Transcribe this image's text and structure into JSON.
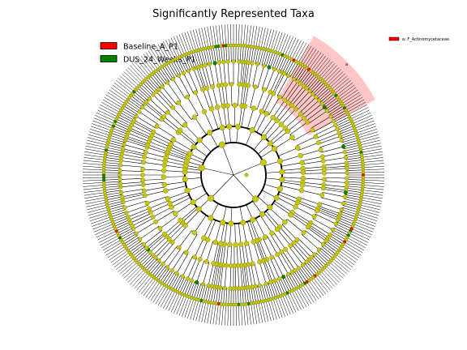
{
  "figure": {
    "title": "Significantly Represented Taxa"
  },
  "legend": {
    "items": [
      {
        "label": "Baseline_A_P1",
        "color": "#ff0000"
      },
      {
        "label": "DUS_24_Weeks_P1",
        "color": "#008000"
      }
    ]
  },
  "side_legend": {
    "items": [
      {
        "label": "a: F_Actinomycetaceae",
        "color": "#ff0000"
      }
    ]
  },
  "highlight": {
    "letter": "a",
    "color": "#ffb3b3"
  },
  "colors": {
    "node": "#c8c812",
    "node_outline": "#6b6b00",
    "branch": "#000000",
    "baseline": "#ff0000",
    "dus": "#008000"
  }
}
